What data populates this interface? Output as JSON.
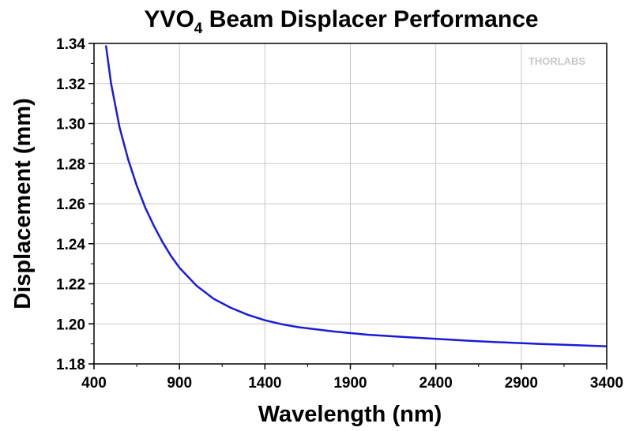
{
  "chart_data": {
    "type": "line",
    "title": "YVO",
    "title_subscript": "4",
    "title_rest": " Beam Displacer Performance",
    "xlabel": "Wavelength (nm)",
    "ylabel": "Displacement (mm)",
    "xlim": [
      400,
      3400
    ],
    "ylim": [
      1.18,
      1.34
    ],
    "xticks": [
      400,
      900,
      1400,
      1900,
      2400,
      2900,
      3400
    ],
    "xtick_labels": [
      "400",
      "900",
      "1400",
      "1900",
      "2400",
      "2900",
      "3400"
    ],
    "yticks": [
      1.18,
      1.2,
      1.22,
      1.24,
      1.26,
      1.28,
      1.3,
      1.32,
      1.34
    ],
    "ytick_labels": [
      "1.18",
      "1.20",
      "1.22",
      "1.24",
      "1.26",
      "1.28",
      "1.30",
      "1.32",
      "1.34"
    ],
    "grid": true,
    "logo_text": "THORLABS",
    "series": [
      {
        "color": "#1a1adc",
        "x": [
          470,
          500,
          550,
          600,
          650,
          700,
          750,
          800,
          850,
          900,
          1000,
          1100,
          1200,
          1300,
          1400,
          1500,
          1600,
          1800,
          2000,
          2200,
          2400,
          2600,
          2800,
          3000,
          3200,
          3400
        ],
        "y": [
          1.339,
          1.32,
          1.298,
          1.282,
          1.269,
          1.258,
          1.249,
          1.241,
          1.234,
          1.228,
          1.219,
          1.2125,
          1.208,
          1.2045,
          1.2018,
          1.1998,
          1.1983,
          1.1962,
          1.1946,
          1.1935,
          1.1925,
          1.1915,
          1.1907,
          1.19,
          1.1894,
          1.1888
        ]
      }
    ]
  }
}
